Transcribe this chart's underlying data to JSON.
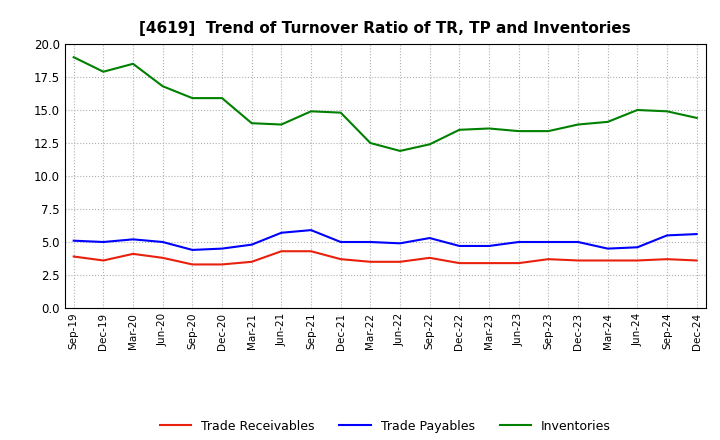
{
  "title": "[4619]  Trend of Turnover Ratio of TR, TP and Inventories",
  "ylim": [
    0.0,
    20.0
  ],
  "yticks": [
    0.0,
    2.5,
    5.0,
    7.5,
    10.0,
    12.5,
    15.0,
    17.5,
    20.0
  ],
  "x_labels": [
    "Sep-19",
    "Dec-19",
    "Mar-20",
    "Jun-20",
    "Sep-20",
    "Dec-20",
    "Mar-21",
    "Jun-21",
    "Sep-21",
    "Dec-21",
    "Mar-22",
    "Jun-22",
    "Sep-22",
    "Dec-22",
    "Mar-23",
    "Jun-23",
    "Sep-23",
    "Dec-23",
    "Mar-24",
    "Jun-24",
    "Sep-24",
    "Dec-24"
  ],
  "trade_receivables": [
    3.9,
    3.6,
    4.1,
    3.8,
    3.3,
    3.3,
    3.5,
    4.3,
    4.3,
    3.7,
    3.5,
    3.5,
    3.8,
    3.4,
    3.4,
    3.4,
    3.7,
    3.6,
    3.6,
    3.6,
    3.7,
    3.6
  ],
  "trade_payables": [
    5.1,
    5.0,
    5.2,
    5.0,
    4.4,
    4.5,
    4.8,
    5.7,
    5.9,
    5.0,
    5.0,
    4.9,
    5.3,
    4.7,
    4.7,
    5.0,
    5.0,
    5.0,
    4.5,
    4.6,
    5.5,
    5.6
  ],
  "inventories": [
    19.0,
    17.9,
    18.5,
    16.8,
    15.9,
    15.9,
    14.0,
    13.9,
    14.9,
    14.8,
    12.5,
    11.9,
    12.4,
    13.5,
    13.6,
    13.4,
    13.4,
    13.9,
    14.1,
    15.0,
    14.9,
    14.4
  ],
  "color_tr": "#e8200c",
  "color_tp": "#0000ff",
  "color_inv": "#008000",
  "legend_labels": [
    "Trade Receivables",
    "Trade Payables",
    "Inventories"
  ],
  "background_color": "#ffffff",
  "grid_color": "#b0b0b0"
}
